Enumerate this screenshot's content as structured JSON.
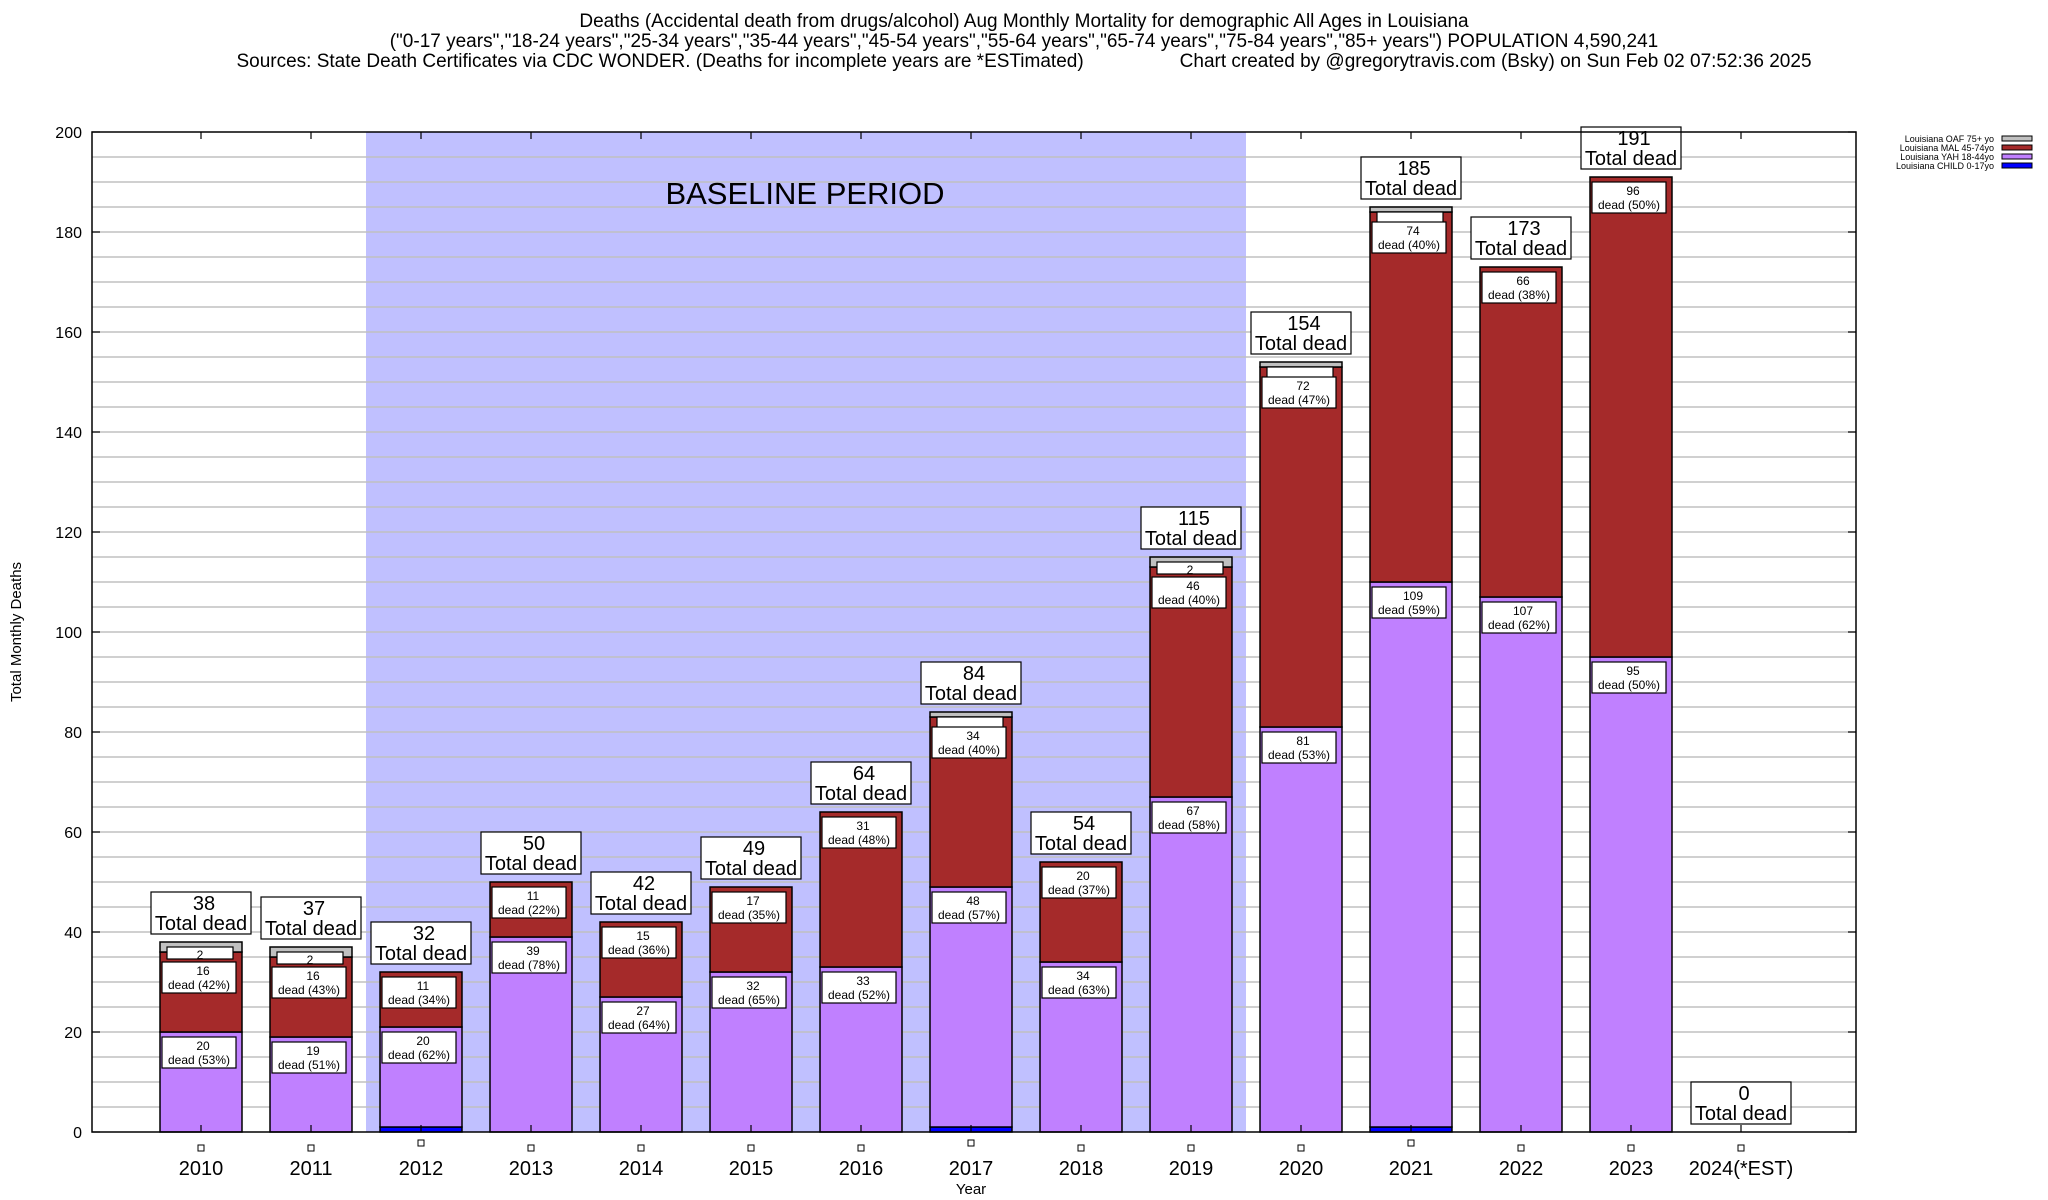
{
  "chart_data": {
    "type": "bar",
    "stacked": true,
    "title": "Deaths (Accidental death from drugs/alcohol) Aug Monthly Mortality for demographic All Ages in Louisiana",
    "subtitle": "(\"0-17 years\",\"18-24 years\",\"25-34 years\",\"35-44 years\",\"45-54 years\",\"55-64 years\",\"65-74 years\",\"75-84 years\",\"85+ years\") POPULATION 4,590,241",
    "sources": "Sources: State Death Certificates via CDC WONDER. (Deaths for incomplete years are *ESTimated)",
    "credit": "Chart created by @gregorytravis.com (Bsky) on Sun Feb 02 07:52:36 2025",
    "xlabel": "Year",
    "ylabel": "Total Monthly Deaths",
    "ylim": [
      0,
      200
    ],
    "yticks": [
      0,
      20,
      40,
      60,
      80,
      100,
      120,
      140,
      160,
      180,
      200
    ],
    "grid": true,
    "legend_position": "top-right",
    "annotation": "BASELINE PERIOD",
    "baseline_range": [
      "2012",
      "2019"
    ],
    "total_suffix": "Total dead",
    "segment_prefix": "dead",
    "categories": [
      "2010",
      "2011",
      "2012",
      "2013",
      "2014",
      "2015",
      "2016",
      "2017",
      "2018",
      "2019",
      "2020",
      "2021",
      "2022",
      "2023",
      "2024(*EST)"
    ],
    "series": [
      {
        "name": "Louisiana CHILD 0-17yo",
        "color": "#0000ff",
        "values": [
          0,
          0,
          1,
          0,
          0,
          0,
          0,
          1,
          0,
          0,
          0,
          1,
          0,
          0,
          0
        ]
      },
      {
        "name": "Louisiana YAH 18-44yo",
        "color": "#c080ff",
        "values": [
          20,
          19,
          20,
          39,
          27,
          32,
          33,
          48,
          34,
          67,
          81,
          109,
          107,
          95,
          0
        ]
      },
      {
        "name": "Louisiana MAL 45-74yo",
        "color": "#a52a2a",
        "values": [
          16,
          16,
          11,
          11,
          15,
          17,
          31,
          34,
          20,
          46,
          72,
          74,
          66,
          96,
          0
        ]
      },
      {
        "name": "Louisiana OAF 75+ yo",
        "color": "#c0c0c0",
        "values": [
          2,
          2,
          0,
          0,
          0,
          0,
          0,
          1,
          0,
          2,
          1,
          1,
          0,
          0,
          0
        ]
      }
    ],
    "totals": [
      38,
      37,
      32,
      50,
      42,
      49,
      64,
      84,
      54,
      115,
      154,
      185,
      173,
      191,
      0
    ],
    "segment_labels": {
      "Louisiana YAH 18-44yo": [
        "53%",
        "51%",
        "62%",
        "78%",
        "64%",
        "65%",
        "52%",
        "57%",
        "63%",
        "58%",
        "53%",
        "59%",
        "62%",
        "50%",
        ""
      ],
      "Louisiana MAL 45-74yo": [
        "42%",
        "43%",
        "34%",
        "22%",
        "36%",
        "35%",
        "48%",
        "40%",
        "37%",
        "40%",
        "47%",
        "40%",
        "38%",
        "50%",
        ""
      ],
      "Louisiana OAF 75+ yo": [
        "",
        "",
        "",
        "",
        "",
        "",
        "",
        "",
        "",
        "",
        "",
        "",
        "",
        "",
        ""
      ]
    },
    "colors": {
      "baseline_fill": "#c0c0ff",
      "grid": "#c0c0c0"
    }
  }
}
